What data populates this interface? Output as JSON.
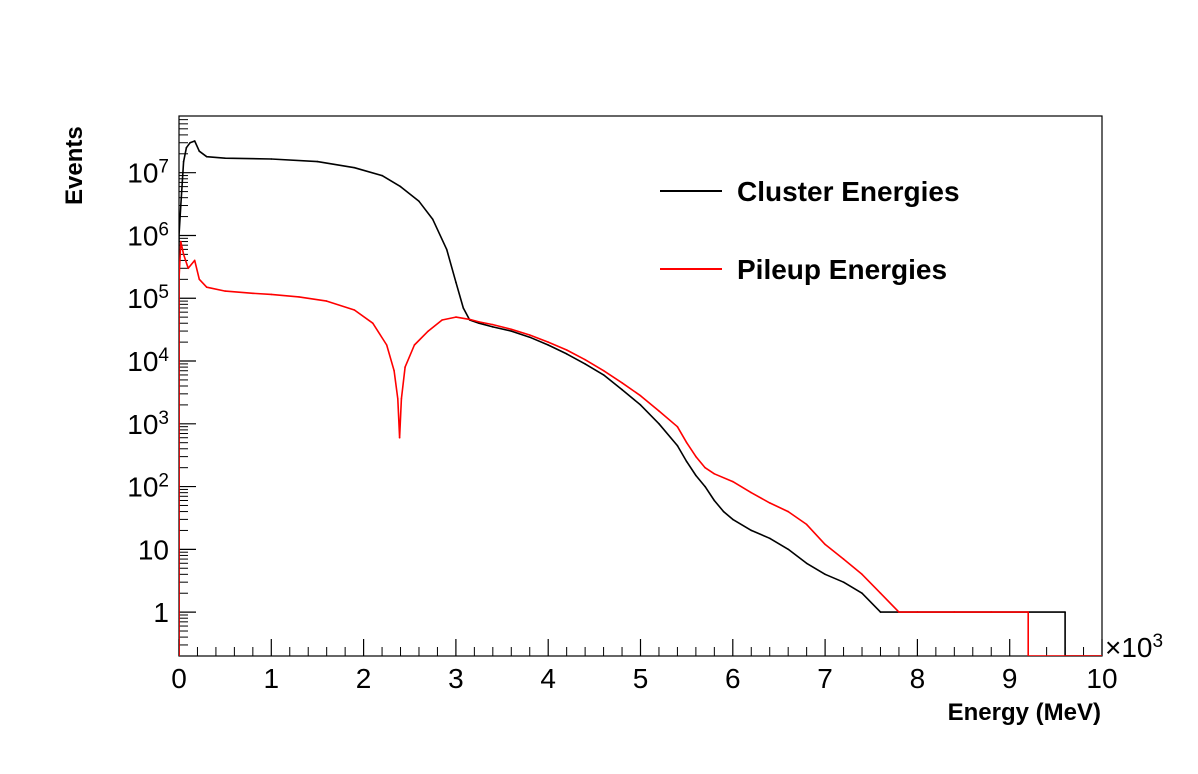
{
  "chart_data": {
    "type": "line",
    "render": "step-histogram",
    "xlabel": "Energy (MeV)",
    "ylabel": "Events",
    "x_multiplier_label": "×10",
    "x_multiplier_exp": "3",
    "xlim": [
      0,
      10
    ],
    "ylim": [
      0.2,
      80000000
    ],
    "y_scale": "log",
    "grid": false,
    "legend_position": "top-right",
    "x_ticks": [
      {
        "v": 0,
        "label": "0"
      },
      {
        "v": 1,
        "label": "1"
      },
      {
        "v": 2,
        "label": "2"
      },
      {
        "v": 3,
        "label": "3"
      },
      {
        "v": 4,
        "label": "4"
      },
      {
        "v": 5,
        "label": "5"
      },
      {
        "v": 6,
        "label": "6"
      },
      {
        "v": 7,
        "label": "7"
      },
      {
        "v": 8,
        "label": "8"
      },
      {
        "v": 9,
        "label": "9"
      },
      {
        "v": 10,
        "label": "10"
      }
    ],
    "y_ticks": [
      {
        "v": 1,
        "base": "1",
        "exp": ""
      },
      {
        "v": 10,
        "base": "10",
        "exp": ""
      },
      {
        "v": 100,
        "base": "10",
        "exp": "2"
      },
      {
        "v": 1000,
        "base": "10",
        "exp": "3"
      },
      {
        "v": 10000,
        "base": "10",
        "exp": "4"
      },
      {
        "v": 100000,
        "base": "10",
        "exp": "5"
      },
      {
        "v": 1000000,
        "base": "10",
        "exp": "6"
      },
      {
        "v": 10000000,
        "base": "10",
        "exp": "7"
      }
    ],
    "series": [
      {
        "name": "Cluster Energies",
        "color": "#000000",
        "x": [
          0.0,
          0.02,
          0.05,
          0.08,
          0.12,
          0.17,
          0.22,
          0.3,
          0.5,
          1.0,
          1.5,
          1.9,
          2.2,
          2.4,
          2.6,
          2.75,
          2.9,
          3.0,
          3.08,
          3.15,
          3.25,
          3.4,
          3.6,
          3.8,
          4.0,
          4.2,
          4.4,
          4.6,
          4.8,
          5.0,
          5.2,
          5.4,
          5.5,
          5.6,
          5.7,
          5.8,
          5.9,
          6.0,
          6.2,
          6.4,
          6.6,
          6.8,
          7.0,
          7.2,
          7.4,
          7.6,
          7.8,
          8.0,
          8.4,
          8.8,
          9.6
        ],
        "y": [
          1000000,
          3000000,
          15000000,
          25000000,
          30000000,
          32000000,
          22000000,
          18000000,
          17000000,
          16500000,
          15000000,
          12000000,
          9000000,
          6000000,
          3500000,
          1800000,
          600000,
          180000,
          70000,
          45000,
          40000,
          35000,
          30000,
          24000,
          18000,
          13000,
          9000,
          6000,
          3500,
          2000,
          1000,
          450,
          250,
          150,
          100,
          60,
          40,
          30,
          20,
          15,
          10,
          6,
          4,
          3,
          2,
          1,
          1,
          1,
          1,
          1,
          1
        ]
      },
      {
        "name": "Pileup Energies",
        "color": "#ff0000",
        "x": [
          0.0,
          0.02,
          0.05,
          0.1,
          0.17,
          0.22,
          0.3,
          0.5,
          0.8,
          1.0,
          1.3,
          1.6,
          1.9,
          2.1,
          2.25,
          2.33,
          2.37,
          2.39,
          2.41,
          2.45,
          2.55,
          2.7,
          2.85,
          3.0,
          3.15,
          3.25,
          3.4,
          3.6,
          3.8,
          4.0,
          4.2,
          4.4,
          4.6,
          4.8,
          5.0,
          5.2,
          5.4,
          5.5,
          5.6,
          5.7,
          5.8,
          6.0,
          6.2,
          6.4,
          6.6,
          6.8,
          7.0,
          7.2,
          7.4,
          7.6,
          7.8,
          8.0,
          8.4,
          8.8,
          9.2
        ],
        "y": [
          200000,
          800000,
          500000,
          300000,
          400000,
          200000,
          150000,
          130000,
          120000,
          115000,
          105000,
          90000,
          65000,
          40000,
          18000,
          7000,
          2500,
          600,
          2500,
          8000,
          18000,
          30000,
          45000,
          50000,
          46000,
          42000,
          38000,
          32000,
          26000,
          20000,
          15000,
          10500,
          7000,
          4500,
          2800,
          1600,
          900,
          500,
          300,
          200,
          160,
          120,
          80,
          55,
          40,
          25,
          12,
          7,
          4,
          2,
          1,
          1,
          1,
          1,
          1
        ]
      }
    ]
  }
}
